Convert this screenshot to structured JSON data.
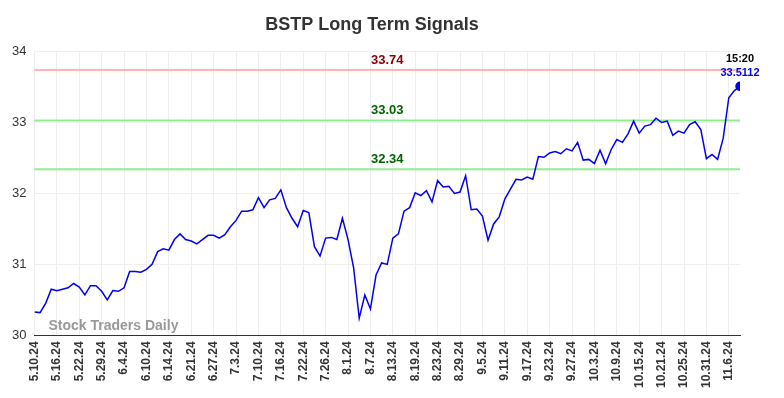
{
  "chart_data": {
    "type": "line",
    "title": "BSTP Long Term Signals",
    "watermark": "Stock Traders Daily",
    "categories": [
      "5.10.24",
      null,
      null,
      null,
      "5.16.24",
      null,
      null,
      null,
      "5.22.24",
      null,
      null,
      null,
      "5.29.24",
      null,
      null,
      null,
      "6.4.24",
      null,
      null,
      null,
      "6.10.24",
      null,
      null,
      null,
      "6.14.24",
      null,
      null,
      null,
      "6.21.24",
      null,
      null,
      null,
      "6.27.24",
      null,
      null,
      null,
      "7.3.24",
      null,
      null,
      null,
      "7.10.24",
      null,
      null,
      null,
      "7.16.24",
      null,
      null,
      null,
      "7.22.24",
      null,
      null,
      null,
      "7.26.24",
      null,
      null,
      null,
      "8.1.24",
      null,
      null,
      null,
      "8.7.24",
      null,
      null,
      null,
      "8.13.24",
      null,
      null,
      null,
      "8.19.24",
      null,
      null,
      null,
      "8.23.24",
      null,
      null,
      null,
      "8.29.24",
      null,
      null,
      null,
      "9.5.24",
      null,
      null,
      null,
      "9.11.24",
      null,
      null,
      null,
      "9.17.24",
      null,
      null,
      null,
      "9.23.24",
      null,
      null,
      null,
      "9.27.24",
      null,
      null,
      null,
      "10.3.24",
      null,
      null,
      null,
      "10.9.24",
      null,
      null,
      null,
      "10.15.24",
      null,
      null,
      null,
      "10.21.24",
      null,
      null,
      null,
      "10.25.24",
      null,
      null,
      null,
      "10.31.24",
      null,
      null,
      null,
      "11.6.24",
      null,
      null
    ],
    "series": [
      {
        "name": "BSTP",
        "color": "#0000ee",
        "marker": "last",
        "values": [
          30.33,
          30.32,
          30.45,
          30.65,
          30.63,
          30.65,
          30.67,
          30.73,
          30.68,
          30.57,
          30.7,
          30.7,
          30.62,
          30.5,
          30.63,
          30.62,
          30.67,
          30.9,
          30.9,
          30.89,
          30.93,
          31.0,
          31.18,
          31.22,
          31.2,
          31.35,
          31.43,
          31.35,
          31.33,
          31.29,
          31.35,
          31.41,
          31.41,
          31.37,
          31.42,
          31.53,
          31.62,
          31.75,
          31.75,
          31.77,
          31.94,
          31.8,
          31.91,
          31.93,
          32.05,
          31.8,
          31.65,
          31.53,
          31.76,
          31.73,
          31.25,
          31.12,
          31.37,
          31.38,
          31.35,
          31.65,
          31.35,
          30.95,
          30.24,
          30.57,
          30.37,
          30.85,
          31.02,
          31.0,
          31.37,
          31.43,
          31.75,
          31.8,
          32.01,
          31.97,
          32.04,
          31.88,
          32.18,
          32.09,
          32.1,
          32.0,
          32.02,
          32.25,
          31.77,
          31.78,
          31.68,
          31.34,
          31.57,
          31.67,
          31.92,
          32.06,
          32.2,
          32.19,
          32.23,
          32.2,
          32.52,
          32.51,
          32.57,
          32.59,
          32.56,
          32.63,
          32.6,
          32.72,
          32.47,
          32.48,
          32.42,
          32.61,
          32.42,
          32.62,
          32.76,
          32.72,
          32.84,
          33.02,
          32.85,
          32.95,
          32.97,
          33.06,
          33.0,
          33.02,
          32.82,
          32.88,
          32.85,
          32.97,
          33.01,
          32.9,
          32.49,
          32.55,
          32.48,
          32.78,
          33.35,
          33.45,
          33.5112
        ],
        "last_label": {
          "time": "15:20",
          "value_label": "33.5112"
        }
      }
    ],
    "annotations": [
      {
        "value": 33.74,
        "label": "33.74",
        "color": "#ffb3b3",
        "text_color": "#8b0000"
      },
      {
        "value": 33.03,
        "label": "33.03",
        "color": "#90ee90",
        "text_color": "#006400"
      },
      {
        "value": 32.34,
        "label": "32.34",
        "color": "#90ee90",
        "text_color": "#006400"
      }
    ],
    "ylim": [
      30,
      34
    ],
    "yticks": [
      30,
      31,
      32,
      33,
      34
    ],
    "grid": true
  }
}
